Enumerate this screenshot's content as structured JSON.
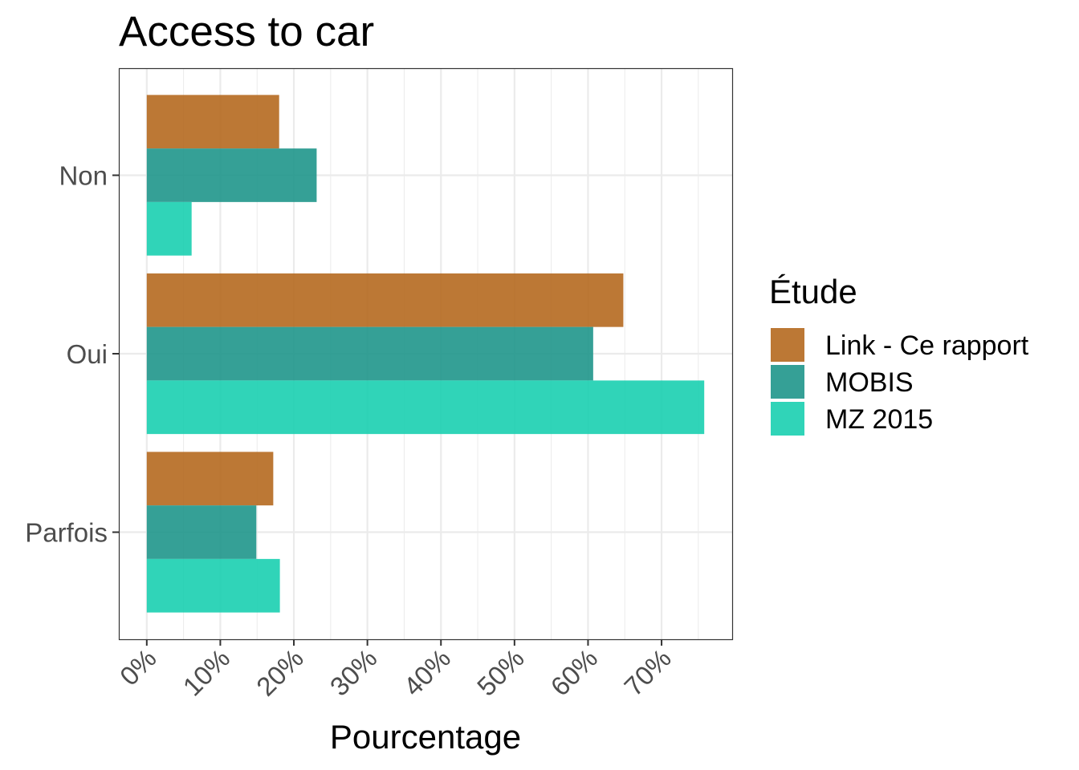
{
  "chart_data": {
    "type": "bar",
    "orientation": "horizontal",
    "title": "Access to car",
    "xlabel": "Pourcentage",
    "ylabel": "",
    "categories": [
      "Non",
      "Oui",
      "Parfois"
    ],
    "series": [
      {
        "name": "Link - Ce rapport",
        "color": "#B5691F",
        "values": [
          18.0,
          64.8,
          17.2
        ]
      },
      {
        "name": "MOBIS",
        "color": "#1F968B",
        "values": [
          23.1,
          60.7,
          14.9
        ]
      },
      {
        "name": "MZ 2015",
        "color": "#1ACFB0",
        "values": [
          6.1,
          75.8,
          18.1
        ]
      }
    ],
    "x_ticks": [
      "0%",
      "10%",
      "20%",
      "30%",
      "40%",
      "50%",
      "60%",
      "70%"
    ],
    "x_tick_values": [
      0,
      10,
      20,
      30,
      40,
      50,
      60,
      70
    ],
    "xlim": [
      -3.8,
      79.6
    ],
    "legend": {
      "title": "Étude",
      "placement": "right"
    },
    "grid": true
  }
}
